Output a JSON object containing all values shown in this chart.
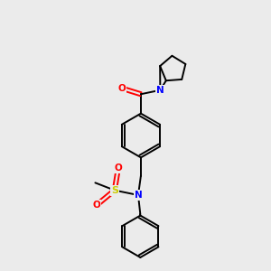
{
  "background_color": "#ebebeb",
  "bond_color": "#000000",
  "atom_colors": {
    "O": "#ff0000",
    "N": "#0000ff",
    "S": "#cccc00",
    "C": "#000000"
  },
  "figsize": [
    3.0,
    3.0
  ],
  "dpi": 100
}
